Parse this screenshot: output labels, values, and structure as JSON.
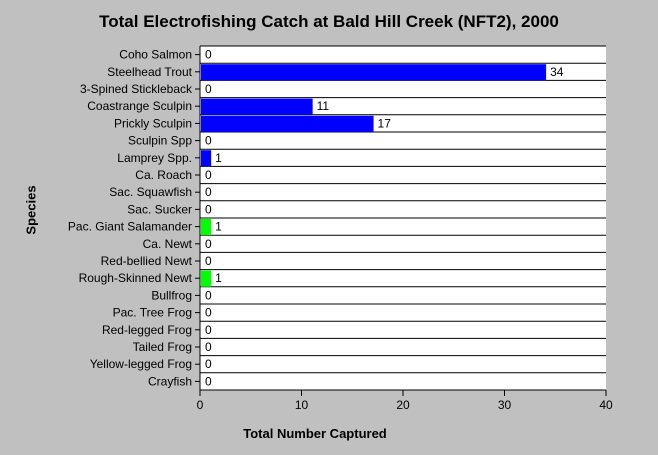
{
  "chart_data": {
    "type": "bar",
    "orientation": "horizontal",
    "title": "Total Electrofishing Catch at  Bald Hill Creek (NFT2), 2000",
    "xlabel": "Total Number Captured",
    "ylabel": "Species",
    "xlim": [
      0,
      40
    ],
    "x_ticks": [
      "0",
      "10",
      "20",
      "30",
      "40"
    ],
    "grid": "horizontal lines between categories",
    "categories": [
      "Coho Salmon",
      "Steelhead Trout",
      "3-Spined Stickleback",
      "Coastrange Sculpin",
      "Prickly Sculpin",
      "Sculpin Spp",
      "Lamprey Spp.",
      "Ca. Roach",
      "Sac. Squawfish",
      "Sac. Sucker",
      "Pac. Giant Salamander",
      "Ca. Newt",
      "Red-bellied Newt",
      "Rough-Skinned Newt",
      "Bullfrog",
      "Pac. Tree Frog",
      "Red-legged Frog",
      "Tailed Frog",
      "Yellow-legged Frog",
      "Crayfish"
    ],
    "values": [
      0,
      34,
      0,
      11,
      17,
      0,
      1,
      0,
      0,
      0,
      1,
      0,
      0,
      1,
      0,
      0,
      0,
      0,
      0,
      0
    ],
    "value_labels": [
      "0",
      "34",
      "0",
      "11",
      "17",
      "0",
      "1",
      "0",
      "0",
      "0",
      "1",
      "0",
      "0",
      "1",
      "0",
      "0",
      "0",
      "0",
      "0",
      "0"
    ],
    "bar_colors": [
      "#0000ff",
      "#0000ff",
      "#0000ff",
      "#0000ff",
      "#0000ff",
      "#0000ff",
      "#0000ff",
      "#0000ff",
      "#0000ff",
      "#0000ff",
      "#00ff00",
      "#00ff00",
      "#00ff00",
      "#00ff00",
      "#00ff00",
      "#00ff00",
      "#00ff00",
      "#00ff00",
      "#00ff00",
      "#00ff00"
    ],
    "background_color": "#c0c0c0",
    "plot_background_color": "#ffffff"
  }
}
